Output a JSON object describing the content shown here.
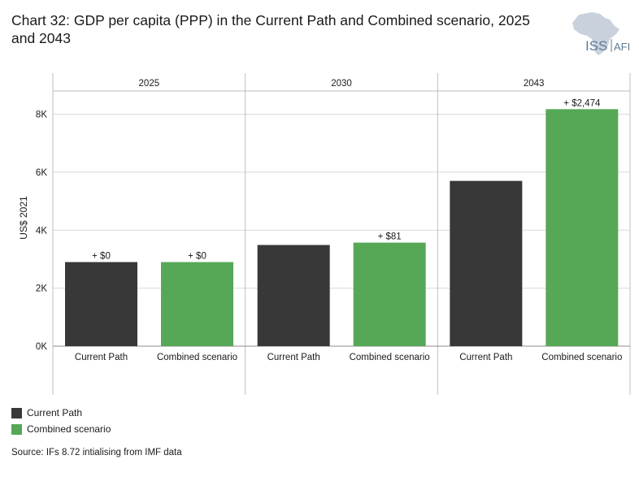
{
  "header": {
    "title": "Chart 32: GDP per capita (PPP) in the Current Path and Combined scenario, 2025 and 2043",
    "logo_text_iss": "ISS",
    "logo_text_afi": "AFI",
    "logo_icon": "africa-map-icon"
  },
  "colors": {
    "current_path": "#383838",
    "combined_scenario": "#56a856",
    "grid": "#d9d9d9",
    "panel_border": "#bfbfbf",
    "logo_map": "#c9d2dc",
    "logo_text": "#5d7a96"
  },
  "chart_data": {
    "type": "bar",
    "ylabel": "US$ 2021",
    "ylim": [
      0,
      8800
    ],
    "yticks": [
      0,
      2000,
      4000,
      6000,
      8000
    ],
    "ytick_labels": [
      "0K",
      "2K",
      "4K",
      "6K",
      "8K"
    ],
    "categories": [
      "Current Path",
      "Combined scenario"
    ],
    "panels": [
      {
        "label": "2025",
        "bars": [
          {
            "category": "Current Path",
            "value": 2900,
            "annotation": "+ $0"
          },
          {
            "category": "Combined scenario",
            "value": 2900,
            "annotation": "+ $0"
          }
        ]
      },
      {
        "label": "2030",
        "bars": [
          {
            "category": "Current Path",
            "value": 3490,
            "annotation": ""
          },
          {
            "category": "Combined scenario",
            "value": 3571,
            "annotation": "+ $81"
          }
        ]
      },
      {
        "label": "2043",
        "bars": [
          {
            "category": "Current Path",
            "value": 5700,
            "annotation": ""
          },
          {
            "category": "Combined scenario",
            "value": 8174,
            "annotation": "+ $2,474"
          }
        ]
      }
    ],
    "legend": [
      {
        "name": "Current Path"
      },
      {
        "name": "Combined scenario"
      }
    ],
    "legend_position": "bottom-left",
    "grid": true
  },
  "footer": {
    "source": "Source: IFs 8.72 intialising from IMF data"
  }
}
